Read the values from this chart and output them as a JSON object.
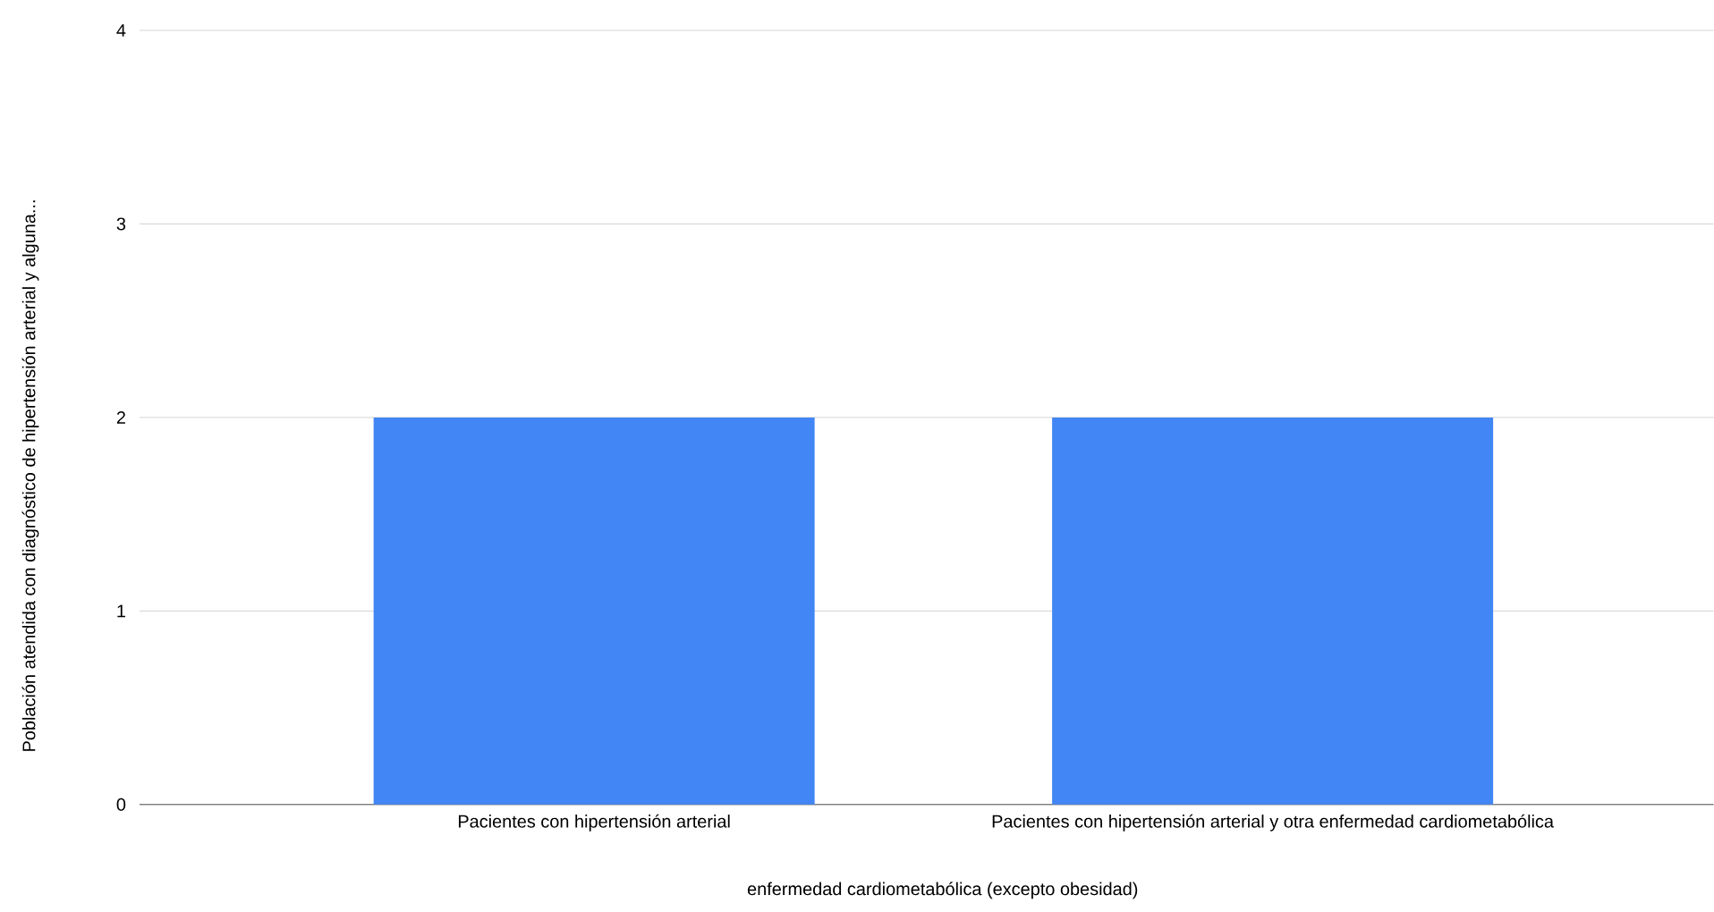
{
  "chart_data": {
    "type": "bar",
    "xlabel": "enfermedad cardiometabólica (excepto obesidad)",
    "ylabel": "Población atendida con diagnóstico de hipertensión arterial y alguna...",
    "categories": [
      "Pacientes con hipertensión arterial",
      "Pacientes con hipertensión arterial y otra enfermedad cardiometabólica"
    ],
    "values": [
      2,
      2
    ],
    "color": "#4285f4",
    "ylim": [
      0,
      4
    ],
    "yticks": [
      0,
      1,
      2,
      3,
      4
    ],
    "grid": "y"
  }
}
